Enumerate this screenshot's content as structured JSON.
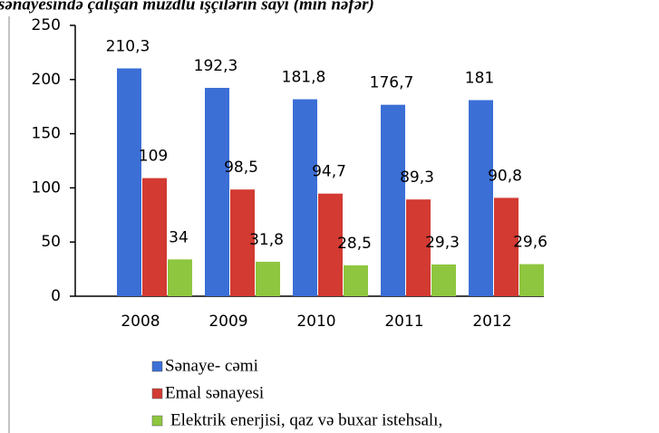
{
  "chart_data": {
    "type": "bar",
    "title": "sənayesində çalışan muzdlu işçilərin sayı (min nəfər)",
    "categories": [
      "2008",
      "2009",
      "2010",
      "2011",
      "2012"
    ],
    "series": [
      {
        "name": "Sənaye- cəmi",
        "color": "#3b6fd6",
        "values": [
          210.3,
          192.3,
          181.8,
          176.7,
          181
        ],
        "value_labels": [
          "210,3",
          "192,3",
          "181,8",
          "176,7",
          "181"
        ]
      },
      {
        "name": "Emal sənayesi",
        "color": "#d23a32",
        "values": [
          109,
          98.5,
          94.7,
          89.3,
          90.8
        ],
        "value_labels": [
          "109",
          "98,5",
          "94,7",
          "89,3",
          "90,8"
        ]
      },
      {
        "name": "Elektrik enerjisi, qaz və buxar istehsalı,",
        "color": "#8fc640",
        "values": [
          34,
          31.8,
          28.5,
          29.3,
          29.6
        ],
        "value_labels": [
          "34",
          "31,8",
          "28,5",
          "29,3",
          "29,6"
        ]
      }
    ],
    "ylim": [
      0,
      250
    ],
    "yticks": [
      0,
      50,
      100,
      150,
      200,
      250
    ],
    "grid": false
  }
}
